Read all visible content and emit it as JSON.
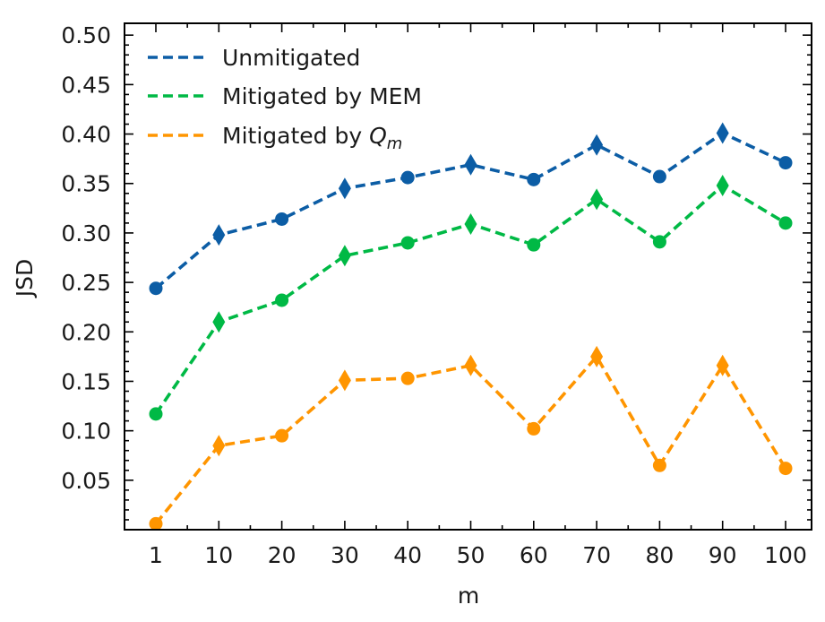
{
  "chart_data": {
    "type": "line",
    "title": "",
    "xlabel": "m",
    "ylabel": "JSD",
    "categories": [
      "1",
      "10",
      "20",
      "30",
      "40",
      "50",
      "60",
      "70",
      "80",
      "90",
      "100"
    ],
    "ylim": [
      0.0,
      0.5
    ],
    "yticks": [
      "0.05",
      "0.10",
      "0.15",
      "0.20",
      "0.25",
      "0.30",
      "0.35",
      "0.40",
      "0.45",
      "0.50"
    ],
    "legend_position": "top-left",
    "series": [
      {
        "name": "Unmitigated",
        "color": "#0C5DA5",
        "values": [
          0.244,
          0.298,
          0.314,
          0.345,
          0.356,
          0.369,
          0.354,
          0.389,
          0.357,
          0.401,
          0.371
        ],
        "markers": [
          "circle",
          "diamond",
          "circle",
          "diamond",
          "circle",
          "diamond",
          "circle",
          "diamond",
          "circle",
          "diamond",
          "circle"
        ]
      },
      {
        "name": "Mitigated by MEM",
        "color": "#00B945",
        "values": [
          0.117,
          0.21,
          0.232,
          0.277,
          0.29,
          0.309,
          0.288,
          0.334,
          0.291,
          0.348,
          0.31
        ],
        "markers": [
          "circle",
          "diamond",
          "circle",
          "diamond",
          "circle",
          "diamond",
          "circle",
          "diamond",
          "circle",
          "diamond",
          "circle"
        ]
      },
      {
        "name": "Mitigated by ",
        "name_math": "Q",
        "name_sub": "m",
        "color": "#FF9500",
        "values": [
          0.006,
          0.085,
          0.095,
          0.151,
          0.153,
          0.166,
          0.102,
          0.175,
          0.065,
          0.166,
          0.062
        ],
        "markers": [
          "circle",
          "diamond",
          "circle",
          "diamond",
          "circle",
          "diamond",
          "circle",
          "diamond",
          "circle",
          "diamond",
          "circle"
        ]
      }
    ]
  }
}
